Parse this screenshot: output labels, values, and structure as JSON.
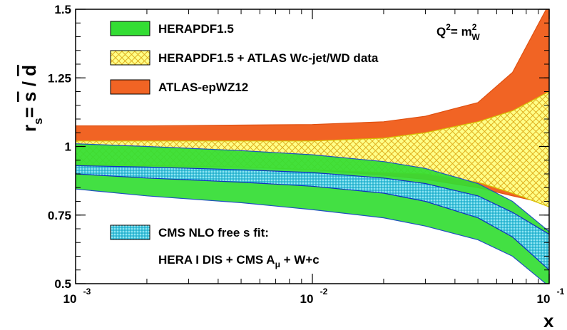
{
  "chart_data": {
    "type": "area",
    "xscale": "log",
    "xlim": [
      0.001,
      0.1
    ],
    "ylim": [
      0.5,
      1.5
    ],
    "xlabel": "x",
    "ylabel": "r_s = s / d̄",
    "ylabel_parts": {
      "r": "r",
      "r_sub": "s",
      "eq": "= ",
      "s": "s",
      "slash": " / ",
      "d": "d"
    },
    "annotation": {
      "Q": "Q",
      "Q_sup": "2",
      "eq": "= m",
      "m_sup": "2",
      "m_sub": "W"
    },
    "y_ticks": [
      "0.5",
      "0.75",
      "1",
      "1.25",
      "1.5"
    ],
    "y_tick_values": [
      0.5,
      0.75,
      1.0,
      1.25,
      1.5
    ],
    "x_ticks": [
      {
        "base": "10",
        "exp": "-3"
      },
      {
        "base": "10",
        "exp": "-2"
      },
      {
        "base": "10",
        "exp": "-1"
      }
    ],
    "x_tick_values": [
      0.001,
      0.01,
      0.1
    ],
    "x_grid": [
      0.001,
      0.0015,
      0.002,
      0.003,
      0.005,
      0.01,
      0.015,
      0.02,
      0.03,
      0.05,
      0.1
    ],
    "series": [
      {
        "name": "ATLAS-epWZ12",
        "color": "#f16424",
        "pattern": "solid",
        "x": [
          0.001,
          0.002,
          0.005,
          0.01,
          0.02,
          0.03,
          0.05,
          0.07,
          0.1
        ],
        "upper": [
          1.075,
          1.075,
          1.078,
          1.08,
          1.09,
          1.11,
          1.16,
          1.27,
          1.52
        ],
        "lower": [
          0.975,
          0.955,
          0.93,
          0.915,
          0.895,
          0.88,
          0.85,
          0.82,
          0.79
        ]
      },
      {
        "name": "HERAPDF1.5 + ATLAS Wc-jet/WD data",
        "color": "#ffff00",
        "pattern": "hatch",
        "x": [
          0.001,
          0.002,
          0.005,
          0.01,
          0.02,
          0.03,
          0.05,
          0.07,
          0.1
        ],
        "upper": [
          1.02,
          1.02,
          1.02,
          1.02,
          1.03,
          1.05,
          1.09,
          1.13,
          1.2
        ],
        "lower": [
          0.935,
          0.93,
          0.925,
          0.915,
          0.905,
          0.9,
          0.87,
          0.83,
          0.78
        ]
      },
      {
        "name": "HERAPDF1.5",
        "color": "#33dd33",
        "pattern": "solid",
        "x": [
          0.001,
          0.002,
          0.005,
          0.01,
          0.02,
          0.03,
          0.05,
          0.07,
          0.1
        ],
        "upper": [
          1.01,
          1.0,
          0.985,
          0.97,
          0.945,
          0.92,
          0.865,
          0.8,
          0.69
        ],
        "lower": [
          0.845,
          0.82,
          0.795,
          0.77,
          0.74,
          0.71,
          0.66,
          0.6,
          0.49
        ]
      },
      {
        "name": "CMS NLO free s fit: HERA I DIS + CMS A_μ + W+c",
        "legend_lines": {
          "l1": "CMS NLO free s fit:",
          "l2a": "HERA I DIS + CMS A",
          "l2sub": "μ",
          "l2b": " + W+c"
        },
        "color": "#33ccee",
        "pattern": "dots",
        "x": [
          0.001,
          0.002,
          0.005,
          0.01,
          0.02,
          0.03,
          0.05,
          0.07,
          0.1
        ],
        "upper": [
          0.93,
          0.925,
          0.915,
          0.905,
          0.885,
          0.865,
          0.82,
          0.76,
          0.68
        ],
        "lower": [
          0.9,
          0.885,
          0.87,
          0.855,
          0.83,
          0.8,
          0.74,
          0.67,
          0.55
        ]
      }
    ],
    "legend": [
      {
        "label": "HERAPDF1.5",
        "color": "#33dd33",
        "pattern": "solid"
      },
      {
        "label": "HERAPDF1.5 + ATLAS Wc-jet/WD data",
        "color": "#ffff00",
        "pattern": "hatch"
      },
      {
        "label": "ATLAS-epWZ12",
        "color": "#f16424",
        "pattern": "solid"
      }
    ],
    "grid": false
  }
}
